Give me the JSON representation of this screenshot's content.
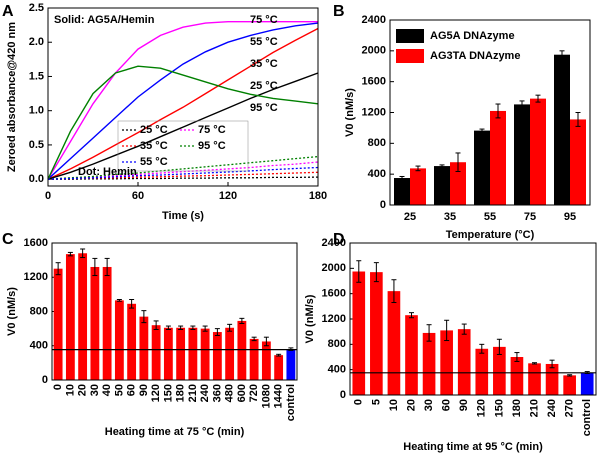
{
  "chart_data": [
    {
      "type": "line",
      "panel": "A",
      "xlabel": "Time (s)",
      "ylabel": "Zeroed absorbance@420 nm",
      "annotations": [
        "Solid: AG5A/Hemin",
        "Dot: Hemin"
      ],
      "x": [
        0,
        15,
        30,
        45,
        60,
        75,
        90,
        105,
        120,
        135,
        150,
        165,
        180
      ],
      "xlim": [
        0,
        180
      ],
      "xticks": [
        0,
        60,
        120,
        180
      ],
      "ylim": [
        -0.1,
        2.5
      ],
      "yticks": [
        {
          "value": 0,
          "label": "0.0"
        },
        0.5,
        {
          "value": 1,
          "label": "1.0"
        },
        1.5,
        {
          "value": 2,
          "label": "2.0"
        },
        2.5
      ],
      "series": [
        {
          "name": "75 °C",
          "color": "#ff00ff",
          "dash": false,
          "values": [
            0,
            0.55,
            1.1,
            1.55,
            1.9,
            2.1,
            2.22,
            2.28,
            2.3,
            2.3,
            2.3,
            2.3,
            2.3
          ]
        },
        {
          "name": "55 °C",
          "color": "#0000ff",
          "dash": false,
          "values": [
            0,
            0.3,
            0.6,
            0.9,
            1.2,
            1.45,
            1.68,
            1.86,
            2.0,
            2.1,
            2.18,
            2.24,
            2.28
          ]
        },
        {
          "name": "35 °C",
          "color": "#ff0000",
          "dash": false,
          "values": [
            0,
            0.15,
            0.32,
            0.5,
            0.68,
            0.87,
            1.05,
            1.25,
            1.45,
            1.65,
            1.85,
            2.03,
            2.2
          ]
        },
        {
          "name": "25 °C",
          "color": "#000000",
          "dash": false,
          "values": [
            0,
            0.1,
            0.22,
            0.35,
            0.48,
            0.62,
            0.76,
            0.9,
            1.04,
            1.18,
            1.31,
            1.43,
            1.55
          ]
        },
        {
          "name": "95 °C",
          "color": "#008000",
          "dash": false,
          "values": [
            0,
            0.7,
            1.25,
            1.55,
            1.65,
            1.62,
            1.52,
            1.42,
            1.32,
            1.24,
            1.18,
            1.14,
            1.1
          ]
        },
        {
          "name": "25 °C",
          "color": "#000000",
          "dash": true,
          "values": [
            0,
            0,
            0.005,
            0.005,
            0.01,
            0.01,
            0.015,
            0.015,
            0.02,
            0.02,
            0.025,
            0.025,
            0.03
          ]
        },
        {
          "name": "75 °C",
          "color": "#ff00ff",
          "dash": true,
          "values": [
            0,
            0.015,
            0.03,
            0.05,
            0.07,
            0.09,
            0.11,
            0.13,
            0.15,
            0.17,
            0.2,
            0.22,
            0.25
          ]
        },
        {
          "name": "35 °C",
          "color": "#ff0000",
          "dash": true,
          "values": [
            0,
            0.01,
            0.015,
            0.02,
            0.03,
            0.035,
            0.045,
            0.05,
            0.06,
            0.07,
            0.08,
            0.09,
            0.1
          ]
        },
        {
          "name": "95 °C",
          "color": "#008000",
          "dash": true,
          "values": [
            0,
            0.02,
            0.04,
            0.07,
            0.09,
            0.12,
            0.15,
            0.18,
            0.21,
            0.24,
            0.27,
            0.3,
            0.33
          ]
        },
        {
          "name": "55 °C",
          "color": "#0000ff",
          "dash": true,
          "values": [
            0,
            0.01,
            0.02,
            0.035,
            0.05,
            0.06,
            0.075,
            0.09,
            0.105,
            0.12,
            0.14,
            0.155,
            0.17
          ]
        }
      ]
    },
    {
      "type": "grouped_bar",
      "panel": "B",
      "xlabel": "Temperature (°C)",
      "ylabel": "V0 (nM/s)",
      "categories": [
        "25",
        "35",
        "55",
        "75",
        "95"
      ],
      "ylim": [
        0,
        2400
      ],
      "yticks": [
        0,
        400,
        800,
        1200,
        1600,
        2000,
        2400
      ],
      "series": [
        {
          "name": "AG5A DNAzyme",
          "color": "#000000",
          "values": [
            350,
            505,
            965,
            1305,
            1950
          ],
          "errors": [
            20,
            15,
            20,
            45,
            50
          ]
        },
        {
          "name": "AG3TA DNAzyme",
          "color": "#ff0000",
          "values": [
            475,
            555,
            1220,
            1380,
            1110
          ],
          "errors": [
            30,
            120,
            90,
            45,
            90
          ]
        }
      ]
    },
    {
      "type": "bar",
      "panel": "C",
      "xlabel": "Heating time  at 75 °C (min)",
      "ylabel": "V0 (nM/s)",
      "xtick_rotation": -90,
      "categories": [
        "0",
        "10",
        "20",
        "30",
        "40",
        "50",
        "60",
        "90",
        "120",
        "150",
        "180",
        "210",
        "240",
        "360",
        "480",
        "600",
        "720",
        "1080",
        "1440",
        "control"
      ],
      "values": [
        1300,
        1470,
        1480,
        1320,
        1320,
        930,
        890,
        740,
        640,
        610,
        610,
        610,
        600,
        560,
        610,
        690,
        480,
        450,
        290,
        360
      ],
      "errors": [
        70,
        20,
        50,
        100,
        100,
        10,
        50,
        70,
        50,
        20,
        20,
        20,
        30,
        40,
        40,
        30,
        20,
        50,
        10,
        15
      ],
      "colors": [
        "#ff0000",
        "#ff0000",
        "#ff0000",
        "#ff0000",
        "#ff0000",
        "#ff0000",
        "#ff0000",
        "#ff0000",
        "#ff0000",
        "#ff0000",
        "#ff0000",
        "#ff0000",
        "#ff0000",
        "#ff0000",
        "#ff0000",
        "#ff0000",
        "#ff0000",
        "#ff0000",
        "#ff0000",
        "#0000ff"
      ],
      "reference_line": 355,
      "ylim": [
        0,
        1600
      ],
      "yticks": [
        0,
        400,
        800,
        1200,
        1600
      ]
    },
    {
      "type": "bar",
      "panel": "D",
      "xlabel": "Heating time at 95 °C (min)",
      "ylabel": "V0 (nM/s)",
      "xtick_rotation": -90,
      "categories": [
        "0",
        "5",
        "10",
        "20",
        "30",
        "60",
        "90",
        "120",
        "150",
        "180",
        "210",
        "240",
        "270",
        "control"
      ],
      "values": [
        1950,
        1940,
        1640,
        1260,
        980,
        1020,
        1040,
        730,
        760,
        600,
        500,
        490,
        310,
        355
      ],
      "errors": [
        170,
        150,
        180,
        40,
        130,
        160,
        80,
        70,
        120,
        70,
        10,
        60,
        10,
        15
      ],
      "colors": [
        "#ff0000",
        "#ff0000",
        "#ff0000",
        "#ff0000",
        "#ff0000",
        "#ff0000",
        "#ff0000",
        "#ff0000",
        "#ff0000",
        "#ff0000",
        "#ff0000",
        "#ff0000",
        "#ff0000",
        "#0000ff"
      ],
      "reference_line": 350,
      "ylim": [
        0,
        2400
      ],
      "yticks": [
        0,
        400,
        800,
        1200,
        1600,
        2000,
        2400
      ]
    }
  ]
}
